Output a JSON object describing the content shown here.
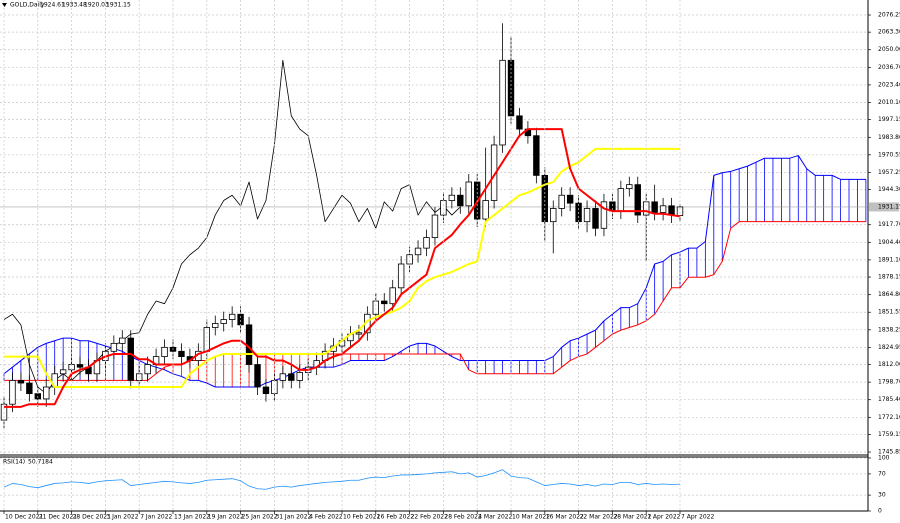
{
  "chart_data": {
    "type": "candlestick",
    "symbol": "GOLD,Daily",
    "ylim": [
      1743.6,
      2087.6
    ],
    "yticks": [
      2076.25,
      {
        "value": 2063.3,
        "label": "2063.30"
      },
      {
        "value": 2050,
        "label": "2050.00"
      },
      {
        "value": 2036.7,
        "label": "2036.70"
      },
      {
        "value": 2023.4,
        "label": "2023.40"
      },
      {
        "value": 2010.1,
        "label": "2010.10"
      },
      1997.15,
      {
        "value": 1983.8,
        "label": "1983.80"
      },
      1970.55,
      1957.25,
      {
        "value": 1944.3,
        "label": "1944.30"
      },
      {
        "value": 1917.7,
        "label": "1917.70"
      },
      {
        "value": 1904.4,
        "label": "1904.40"
      },
      {
        "value": 1891.1,
        "label": "1891.10"
      },
      1878.15,
      {
        "value": 1864.8,
        "label": "1864.80"
      },
      1851.55,
      1838.25,
      1824.95,
      {
        "value": 1812,
        "label": "1812.00"
      },
      {
        "value": 1798.7,
        "label": "1798.70"
      },
      {
        "value": 1785.4,
        "label": "1785.40"
      },
      {
        "value": 1772.1,
        "label": "1772.10"
      },
      1759.15,
      1745.85
    ],
    "grid": true,
    "date_labels": [
      "10 Dec 2021",
      "21 Dec 2021",
      "28 Dec 2021",
      "3 Jan 2022",
      "7 Jan 2022",
      "13 Jan 2022",
      "19 Jan 2022",
      "25 Jan 2022",
      "31 Jan 2022",
      "4 Feb 2022",
      "10 Feb 2022",
      "16 Feb 2022",
      "22 Feb 2022",
      "28 Feb 2022",
      "4 Mar 2022",
      "10 Mar 2022",
      "16 Mar 2022",
      "22 Mar 2022",
      "28 Mar 2022",
      "1 Apr 2022",
      "7 Apr 2022"
    ],
    "open": [
      1770,
      1782,
      1800,
      1798,
      1790,
      1786,
      1795,
      1805,
      1808,
      1812,
      1810,
      1805,
      1815,
      1822,
      1828,
      1832,
      1800,
      1805,
      1812,
      1818,
      1825,
      1822,
      1818,
      1815,
      1822,
      1840,
      1843,
      1846,
      1850,
      1842,
      1812,
      1795,
      1790,
      1800,
      1805,
      1800,
      1806,
      1810,
      1815,
      1822,
      1826,
      1830,
      1835,
      1836,
      1850,
      1860,
      1858,
      1870,
      1888,
      1895,
      1900,
      1908,
      1925,
      1936,
      1940,
      1932,
      1950,
      1922,
      1936,
      1978,
      2042,
      2000,
      1990,
      1985,
      1955,
      1920,
      1930,
      1940,
      1934,
      1920,
      1930,
      1915,
      1935,
      1928,
      1945,
      1948,
      1925,
      1935,
      1927,
      1932,
      1924.61
    ],
    "high": [
      1788,
      1806,
      1806,
      1804,
      1796,
      1801,
      1811,
      1814,
      1818,
      1818,
      1816,
      1821,
      1828,
      1834,
      1838,
      1838,
      1811,
      1818,
      1824,
      1831,
      1831,
      1828,
      1824,
      1828,
      1846,
      1849,
      1852,
      1856,
      1856,
      1848,
      1818,
      1801,
      1806,
      1811,
      1811,
      1812,
      1816,
      1821,
      1828,
      1832,
      1836,
      1841,
      1842,
      1856,
      1866,
      1866,
      1876,
      1894,
      1901,
      1906,
      1914,
      1931,
      1942,
      1946,
      1946,
      1956,
      1956,
      1976,
      1985,
      2070,
      2060,
      2006,
      1996,
      1991,
      1961,
      1936,
      1946,
      1946,
      1940,
      1936,
      1936,
      1941,
      1941,
      1951,
      1954,
      1954,
      1941,
      1948,
      1938,
      1938,
      1933.48
    ],
    "low": [
      1764,
      1776,
      1792,
      1784,
      1780,
      1780,
      1789,
      1799,
      1802,
      1804,
      1799,
      1799,
      1809,
      1816,
      1822,
      1794,
      1794,
      1799,
      1806,
      1812,
      1816,
      1812,
      1809,
      1809,
      1816,
      1834,
      1837,
      1840,
      1836,
      1806,
      1789,
      1784,
      1784,
      1794,
      1794,
      1794,
      1800,
      1804,
      1809,
      1816,
      1820,
      1824,
      1829,
      1830,
      1844,
      1852,
      1852,
      1864,
      1882,
      1889,
      1894,
      1902,
      1919,
      1930,
      1926,
      1926,
      1916,
      1916,
      1930,
      1972,
      1994,
      1984,
      1979,
      1949,
      1905,
      1896,
      1924,
      1928,
      1914,
      1912,
      1909,
      1909,
      1922,
      1922,
      1939,
      1919,
      1890,
      1921,
      1921,
      1919,
      1920.03
    ],
    "close": [
      1782,
      1800,
      1798,
      1790,
      1786,
      1795,
      1805,
      1808,
      1812,
      1810,
      1805,
      1815,
      1822,
      1828,
      1832,
      1800,
      1805,
      1812,
      1818,
      1825,
      1822,
      1818,
      1815,
      1822,
      1840,
      1843,
      1846,
      1850,
      1842,
      1812,
      1795,
      1790,
      1800,
      1805,
      1800,
      1806,
      1810,
      1815,
      1822,
      1826,
      1830,
      1835,
      1836,
      1850,
      1860,
      1858,
      1870,
      1888,
      1895,
      1900,
      1908,
      1925,
      1936,
      1940,
      1932,
      1950,
      1922,
      1936,
      1978,
      2042,
      2000,
      1990,
      1985,
      1955,
      1920,
      1930,
      1940,
      1934,
      1920,
      1930,
      1915,
      1935,
      1928,
      1945,
      1948,
      1925,
      1935,
      1927,
      1932,
      1925,
      1931.15
    ],
    "tenkan": {
      "color": "#ff0000",
      "values": [
        1780,
        1780,
        1780,
        1782,
        1782,
        1782,
        1782,
        1795,
        1805,
        1808,
        1810,
        1815,
        1818,
        1820,
        1820,
        1820,
        1816,
        1816,
        1812,
        1812,
        1812,
        1812,
        1815,
        1820,
        1822,
        1825,
        1828,
        1830,
        1830,
        1825,
        1818,
        1818,
        1815,
        1815,
        1812,
        1808,
        1808,
        1810,
        1815,
        1818,
        1820,
        1825,
        1830,
        1838,
        1845,
        1850,
        1855,
        1865,
        1870,
        1875,
        1880,
        1900,
        1905,
        1910,
        1918,
        1925,
        1935,
        1945,
        1955,
        1965,
        1975,
        1985,
        1990,
        1990,
        1990,
        1990,
        1990,
        1960,
        1945,
        1940,
        1935,
        1930,
        1928,
        1928,
        1928,
        1928,
        1928,
        1926,
        1926,
        1925,
        1924
      ]
    },
    "kijun": {
      "color": "#ffff00",
      "values": [
        1818,
        1818,
        1818,
        1818,
        1818,
        1805,
        1795,
        1795,
        1795,
        1795,
        1795,
        1795,
        1795,
        1795,
        1795,
        1795,
        1795,
        1795,
        1795,
        1795,
        1795,
        1795,
        1805,
        1810,
        1815,
        1818,
        1820,
        1820,
        1820,
        1820,
        1820,
        1820,
        1820,
        1820,
        1820,
        1820,
        1820,
        1820,
        1820,
        1825,
        1830,
        1835,
        1838,
        1845,
        1848,
        1850,
        1852,
        1855,
        1860,
        1870,
        1875,
        1878,
        1880,
        1882,
        1885,
        1888,
        1890,
        1920,
        1925,
        1930,
        1935,
        1940,
        1942,
        1945,
        1948,
        1950,
        1958,
        1962,
        1965,
        1970,
        1975,
        1975,
        1975,
        1975,
        1975,
        1975,
        1975,
        1975,
        1975,
        1975,
        1975
      ]
    },
    "span_a": {
      "color": "#0000ff",
      "values": [
        1805,
        1810,
        1815,
        1820,
        1825,
        1828,
        1830,
        1832,
        1832,
        1830,
        1830,
        1828,
        1826,
        1824,
        1822,
        1818,
        1815,
        1812,
        1810,
        1808,
        1805,
        1803,
        1800,
        1800,
        1798,
        1795,
        1795,
        1795,
        1795,
        1795,
        1795,
        1798,
        1800,
        1802,
        1805,
        1808,
        1810,
        1810,
        1810,
        1810,
        1812,
        1815,
        1815,
        1815,
        1815,
        1815,
        1818,
        1822,
        1826,
        1828,
        1828,
        1826,
        1822,
        1818,
        1815,
        1815,
        1815,
        1815,
        1815,
        1815,
        1815,
        1815,
        1815,
        1815,
        1815,
        1818,
        1825,
        1830,
        1832,
        1835,
        1838,
        1845,
        1850,
        1855,
        1855,
        1858,
        1870,
        1888,
        1890,
        1895,
        1897,
        1900,
        1900,
        1905,
        1955,
        1957,
        1958,
        1960,
        1962,
        1965,
        1968,
        1968,
        1968,
        1968,
        1970,
        1960,
        1955,
        1955,
        1955,
        1952,
        1952,
        1952,
        1952
      ]
    },
    "span_b": {
      "color": "#ff0000",
      "values": [
        1800,
        1800,
        1800,
        1800,
        1800,
        1800,
        1800,
        1800,
        1800,
        1800,
        1800,
        1800,
        1800,
        1800,
        1800,
        1800,
        1800,
        1800,
        1805,
        1810,
        1812,
        1812,
        1815,
        1815,
        1815,
        1818,
        1820,
        1820,
        1820,
        1820,
        1820,
        1820,
        1820,
        1820,
        1820,
        1820,
        1820,
        1820,
        1820,
        1820,
        1820,
        1820,
        1820,
        1820,
        1820,
        1820,
        1820,
        1820,
        1820,
        1820,
        1820,
        1820,
        1820,
        1820,
        1820,
        1808,
        1805,
        1805,
        1805,
        1805,
        1805,
        1805,
        1805,
        1805,
        1805,
        1805,
        1810,
        1815,
        1818,
        1820,
        1825,
        1830,
        1835,
        1838,
        1840,
        1842,
        1845,
        1850,
        1860,
        1870,
        1870,
        1878,
        1878,
        1878,
        1880,
        1890,
        1915,
        1920,
        1920,
        1920,
        1920,
        1920,
        1920,
        1920,
        1920,
        1920,
        1920,
        1920,
        1920,
        1920,
        1920,
        1920,
        1920
      ]
    },
    "chikou": {
      "color": "#000000",
      "values": [
        1846,
        1850,
        1842,
        1812,
        1795,
        1790,
        1800,
        1805,
        1800,
        1806,
        1810,
        1815,
        1822,
        1826,
        1830,
        1835,
        1836,
        1850,
        1860,
        1858,
        1870,
        1888,
        1895,
        1900,
        1908,
        1925,
        1936,
        1940,
        1932,
        1950,
        1922,
        1936,
        1978,
        2042,
        2000,
        1990,
        1985,
        1955,
        1920,
        1930,
        1940,
        1934,
        1920,
        1930,
        1915,
        1935,
        1928,
        1945,
        1948,
        1925,
        1935,
        1927,
        1932,
        1925,
        1931.15
      ]
    },
    "rsi": {
      "name": "RSI(14)",
      "color": "#1e90ff",
      "ylim": [
        0,
        100
      ],
      "yticks": [
        100,
        70,
        30,
        0
      ],
      "values": [
        45,
        52,
        50,
        46,
        44,
        48,
        52,
        53,
        55,
        54,
        52,
        55,
        57,
        58,
        59,
        48,
        50,
        52,
        54,
        56,
        55,
        53,
        52,
        54,
        58,
        59,
        60,
        61,
        57,
        47,
        42,
        41,
        45,
        47,
        45,
        48,
        50,
        52,
        54,
        55,
        56,
        58,
        58,
        62,
        64,
        63,
        66,
        68,
        68,
        69,
        70,
        72,
        73,
        74,
        70,
        72,
        64,
        67,
        72,
        78,
        66,
        63,
        62,
        55,
        48,
        50,
        52,
        51,
        48,
        50,
        47,
        51,
        50,
        54,
        54,
        50,
        52,
        50,
        51,
        50,
        50.7184
      ]
    }
  }
}
